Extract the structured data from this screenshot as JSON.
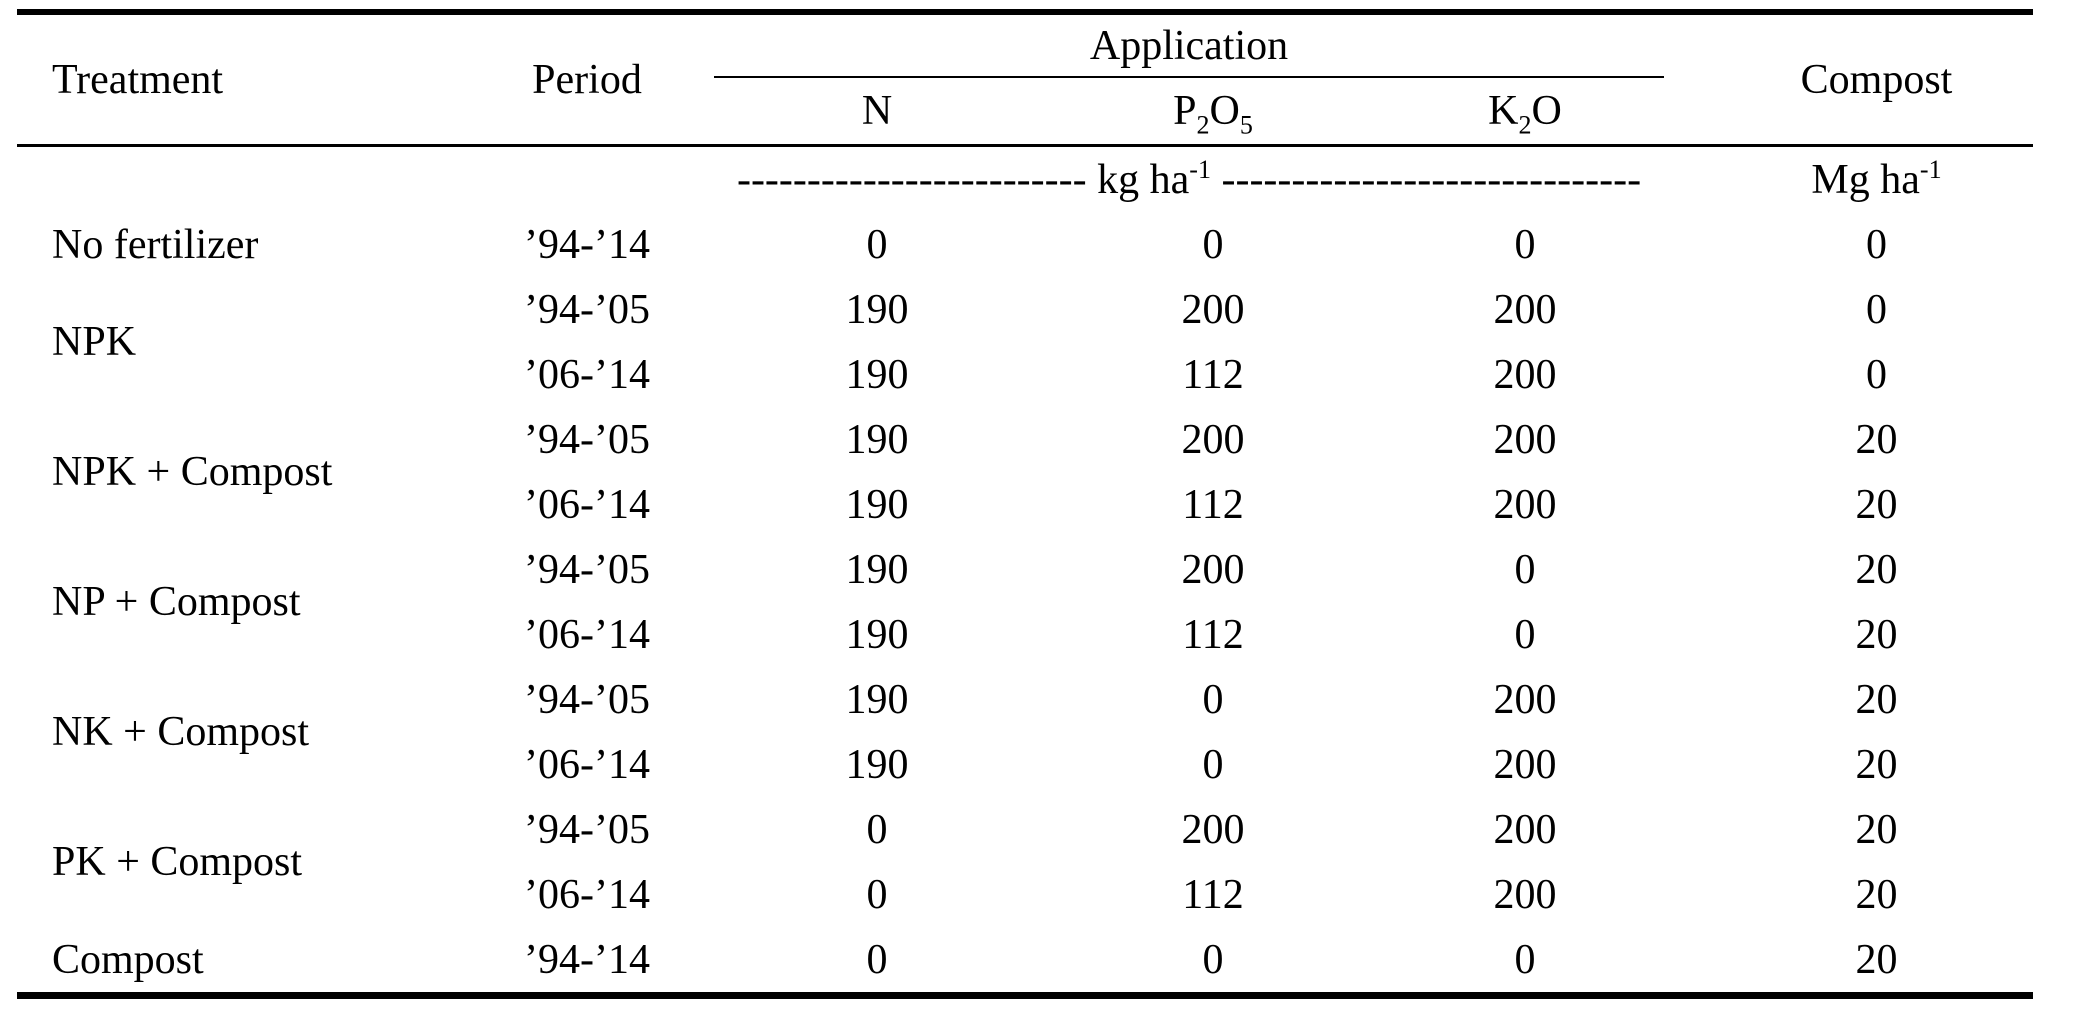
{
  "table": {
    "header": {
      "treatment": "Treatment",
      "period": "Period",
      "application": "Application",
      "n": "N",
      "p": {
        "b1": "P",
        "s1": "2",
        "b2": "O",
        "s2": "5"
      },
      "k": {
        "b1": "K",
        "s1": "2",
        "b2": "O"
      },
      "compost": "Compost"
    },
    "units": {
      "dashes_left": "-------------------------",
      "kg_label": " kg ha",
      "kg_sup": "-1",
      "dashes_right": " ------------------------------",
      "mg_label": "Mg ha",
      "mg_sup": "-1"
    },
    "rows": [
      {
        "treatment": "No fertilizer",
        "period": "’94-’14",
        "n": "0",
        "p": "0",
        "k": "0",
        "compost": "0"
      },
      {
        "treatment": "NPK",
        "period": "’94-’05",
        "n": "190",
        "p": "200",
        "k": "200",
        "compost": "0"
      },
      {
        "period": "’06-’14",
        "n": "190",
        "p": "112",
        "k": "200",
        "compost": "0"
      },
      {
        "treatment": "NPK + Compost",
        "period": "’94-’05",
        "n": "190",
        "p": "200",
        "k": "200",
        "compost": "20"
      },
      {
        "period": "’06-’14",
        "n": "190",
        "p": "112",
        "k": "200",
        "compost": "20"
      },
      {
        "treatment": "NP + Compost",
        "period": "’94-’05",
        "n": "190",
        "p": "200",
        "k": "0",
        "compost": "20"
      },
      {
        "period": "’06-’14",
        "n": "190",
        "p": "112",
        "k": "0",
        "compost": "20"
      },
      {
        "treatment": "NK + Compost",
        "period": "’94-’05",
        "n": "190",
        "p": "0",
        "k": "200",
        "compost": "20"
      },
      {
        "period": "’06-’14",
        "n": "190",
        "p": "0",
        "k": "200",
        "compost": "20"
      },
      {
        "treatment": "PK + Compost",
        "period": "’94-’05",
        "n": "0",
        "p": "200",
        "k": "200",
        "compost": "20"
      },
      {
        "period": "’06-’14",
        "n": "0",
        "p": "112",
        "k": "200",
        "compost": "20"
      },
      {
        "treatment": "Compost",
        "period": "’94-’14",
        "n": "0",
        "p": "0",
        "k": "0",
        "compost": "20"
      }
    ]
  }
}
